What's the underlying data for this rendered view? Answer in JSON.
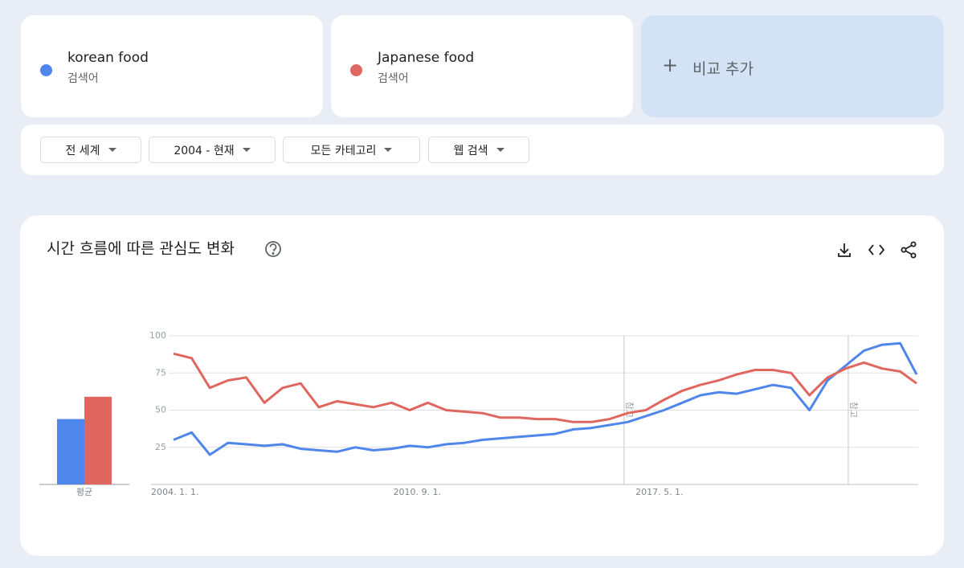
{
  "term_label": "검색어",
  "add_compare": "비교 추가",
  "filters": [
    "전 세계",
    "2004 - 현재",
    "모든 카테고리",
    "웹 검색"
  ],
  "section_title": "시간 흐름에 따른 관심도 변화",
  "chart_data": [
    {
      "type": "bar",
      "categories": [
        "평균"
      ],
      "ylim": [
        0,
        100
      ],
      "series": [
        {
          "color": "#4f86ec",
          "values": [
            44
          ]
        },
        {
          "color": "#e06660",
          "values": [
            59
          ]
        }
      ]
    },
    {
      "type": "line",
      "x": [
        2004,
        2004.5,
        2005,
        2005.5,
        2006,
        2006.5,
        2007,
        2007.5,
        2008,
        2008.5,
        2009,
        2009.5,
        2010,
        2010.5,
        2011,
        2011.5,
        2012,
        2012.5,
        2013,
        2013.5,
        2014,
        2014.5,
        2015,
        2015.5,
        2016,
        2016.5,
        2017,
        2017.5,
        2018,
        2018.5,
        2019,
        2019.5,
        2020,
        2020.5,
        2021,
        2021.5,
        2022,
        2022.5,
        2023,
        2023.5,
        2024,
        2024.45
      ],
      "xlim": [
        2004,
        2024.45
      ],
      "xticks": [
        {
          "value": 2004,
          "label": "2004. 1. 1."
        },
        {
          "value": 2010.667,
          "label": "2010. 9. 1."
        },
        {
          "value": 2017.333,
          "label": "2017. 5. 1."
        }
      ],
      "ylim": [
        0,
        100
      ],
      "yticks": [
        25,
        50,
        75,
        100
      ],
      "grid": true,
      "annotations": [
        {
          "x": 2016.4,
          "label": "참고"
        },
        {
          "x": 2022.57,
          "label": "참고"
        }
      ],
      "series": [
        {
          "name": "korean food",
          "color": "#4f86ec",
          "values": [
            30,
            35,
            20,
            28,
            27,
            26,
            27,
            24,
            23,
            22,
            25,
            23,
            24,
            26,
            25,
            27,
            28,
            30,
            31,
            32,
            33,
            34,
            37,
            38,
            40,
            42,
            46,
            50,
            55,
            60,
            62,
            61,
            64,
            67,
            65,
            50,
            70,
            80,
            90,
            94,
            95,
            74
          ]
        },
        {
          "name": "Japanese food",
          "color": "#e06660",
          "values": [
            88,
            85,
            65,
            70,
            72,
            55,
            65,
            68,
            52,
            56,
            54,
            52,
            55,
            50,
            55,
            50,
            49,
            48,
            45,
            45,
            44,
            44,
            42,
            42,
            44,
            48,
            50,
            57,
            63,
            67,
            70,
            74,
            77,
            77,
            75,
            60,
            72,
            78,
            82,
            78,
            76,
            68
          ]
        }
      ]
    }
  ]
}
